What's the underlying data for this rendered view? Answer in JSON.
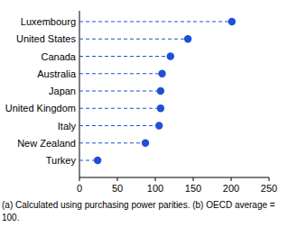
{
  "chart_data": {
    "type": "dot",
    "orientation": "horizontal",
    "categories": [
      "Luxembourg",
      "United States",
      "Canada",
      "Australia",
      "Japan",
      "United Kingdom",
      "Italy",
      "New Zealand",
      "Turkey"
    ],
    "values": [
      201,
      143,
      120,
      109,
      107,
      107,
      105,
      87,
      24
    ],
    "color": "#1f4fd6",
    "marker": "circle",
    "line_style": "dashed",
    "xlim": [
      0,
      250
    ],
    "xticks": [
      0,
      50,
      100,
      150,
      200,
      250
    ],
    "footnote": "(a) Calculated using purchasing power parities. (b) OECD average = 100."
  }
}
